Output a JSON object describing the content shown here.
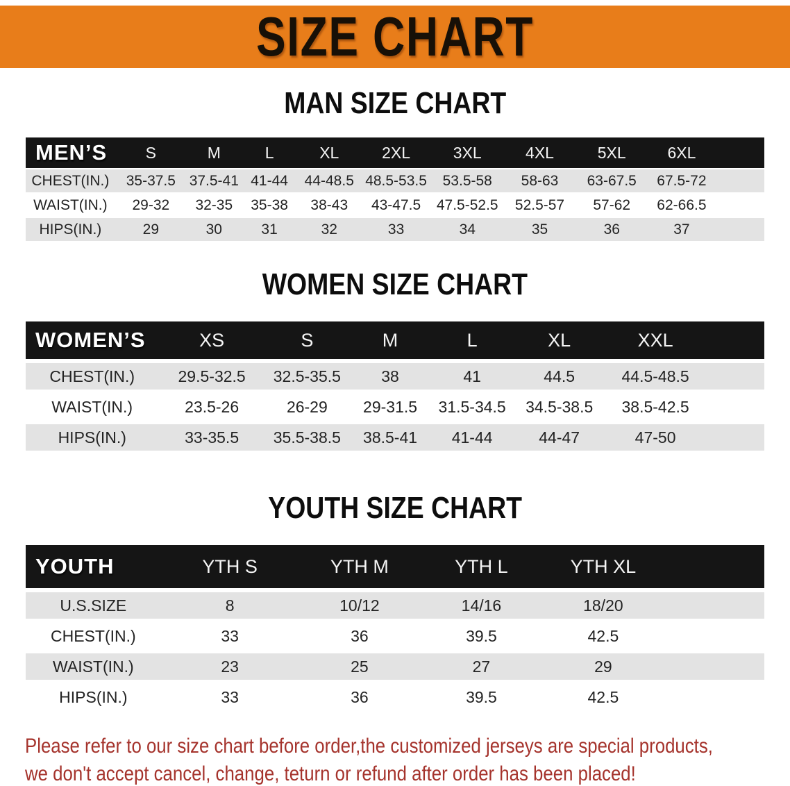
{
  "banner": {
    "title": "SIZE CHART",
    "bg_color": "#e87d1a"
  },
  "sections": {
    "men": {
      "heading": "MAN SIZE CHART",
      "label": "MEN’S",
      "sizes": [
        "S",
        "M",
        "L",
        "XL",
        "2XL",
        "3XL",
        "4XL",
        "5XL",
        "6XL"
      ],
      "rows": [
        {
          "label": "CHEST(IN.)",
          "values": [
            "35-37.5",
            "37.5-41",
            "41-44",
            "44-48.5",
            "48.5-53.5",
            "53.5-58",
            "58-63",
            "63-67.5",
            "67.5-72"
          ]
        },
        {
          "label": "WAIST(IN.)",
          "values": [
            "29-32",
            "32-35",
            "35-38",
            "38-43",
            "43-47.5",
            "47.5-52.5",
            "52.5-57",
            "57-62",
            "62-66.5"
          ]
        },
        {
          "label": "HIPS(IN.)",
          "values": [
            "29",
            "30",
            "31",
            "32",
            "33",
            "34",
            "35",
            "36",
            "37"
          ]
        }
      ]
    },
    "women": {
      "heading": "WOMEN SIZE CHART",
      "label": "WOMEN’S",
      "sizes": [
        "XS",
        "S",
        "M",
        "L",
        "XL",
        "XXL"
      ],
      "rows": [
        {
          "label": "CHEST(IN.)",
          "values": [
            "29.5-32.5",
            "32.5-35.5",
            "38",
            "41",
            "44.5",
            "44.5-48.5"
          ]
        },
        {
          "label": "WAIST(IN.)",
          "values": [
            "23.5-26",
            "26-29",
            "29-31.5",
            "31.5-34.5",
            "34.5-38.5",
            "38.5-42.5"
          ]
        },
        {
          "label": "HIPS(IN.)",
          "values": [
            "33-35.5",
            "35.5-38.5",
            "38.5-41",
            "41-44",
            "44-47",
            "47-50"
          ]
        }
      ]
    },
    "youth": {
      "heading": "YOUTH SIZE CHART",
      "label": "YOUTH",
      "sizes": [
        "YTH S",
        "YTH M",
        "YTH L",
        "YTH XL"
      ],
      "rows": [
        {
          "label": "U.S.SIZE",
          "values": [
            "8",
            "10/12",
            "14/16",
            "18/20"
          ]
        },
        {
          "label": "CHEST(IN.)",
          "values": [
            "33",
            "36",
            "39.5",
            "42.5"
          ]
        },
        {
          "label": "WAIST(IN.)",
          "values": [
            "23",
            "25",
            "27",
            "29"
          ]
        },
        {
          "label": "HIPS(IN.)",
          "values": [
            "33",
            "36",
            "39.5",
            "42.5"
          ]
        }
      ]
    }
  },
  "footer": {
    "line1": "Please refer to our size chart before order,the customized jerseys are special products,",
    "line2": "we don't accept cancel, change, teturn or refund after order has been placed!",
    "color": "#a5332c"
  }
}
